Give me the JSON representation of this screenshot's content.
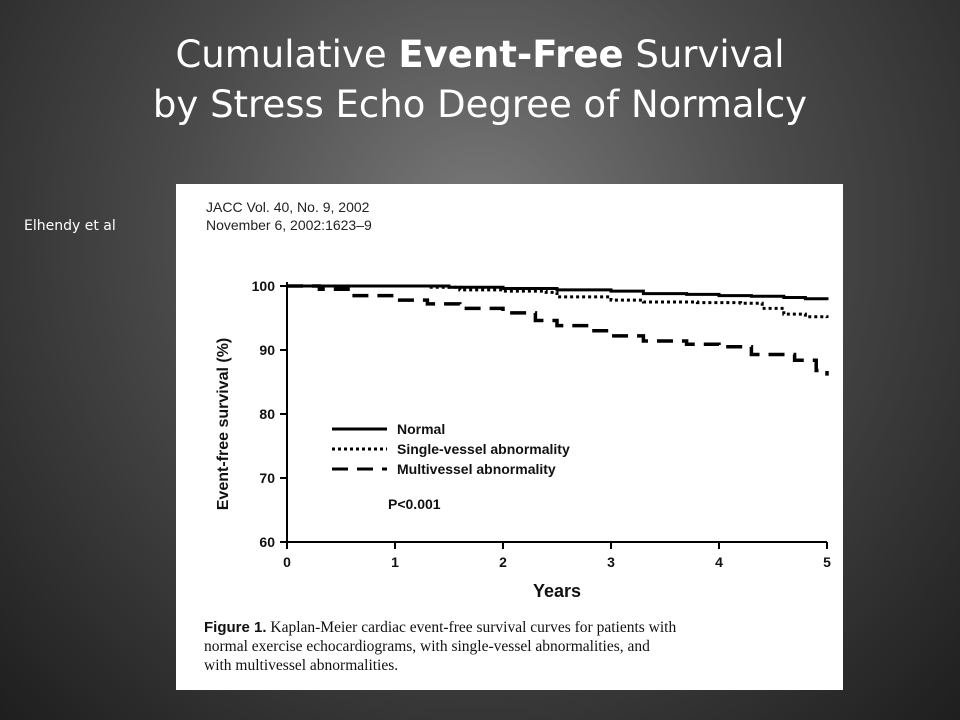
{
  "slide": {
    "title_line1_pre": "Cumulative ",
    "title_line1_bold": "Event-Free",
    "title_line1_post": " Survival",
    "title_line2": "by Stress Echo Degree of Normalcy",
    "author": "Elhendy et al"
  },
  "figure": {
    "citation_line1": "JACC Vol. 40, No. 9, 2002",
    "citation_line2": "November 6, 2002:1623–9",
    "caption_label": "Figure 1.",
    "caption_line1": "Kaplan-Meier cardiac event-free survival curves for patients with",
    "caption_line2": "normal exercise echocardiograms, with single-vessel abnormalities, and",
    "caption_line3": "with multivessel abnormalities."
  },
  "chart_data": {
    "type": "line",
    "xlabel": "Years",
    "ylabel": "Event-free survival (%)",
    "xlim": [
      0,
      5
    ],
    "ylim": [
      60,
      100
    ],
    "xticks": [
      0,
      1,
      2,
      3,
      4,
      5
    ],
    "yticks": [
      60,
      70,
      80,
      90,
      100
    ],
    "annotation": "P<0.001",
    "legend_placement": "center-left",
    "series": [
      {
        "name": "Normal",
        "style": "solid",
        "x": [
          0,
          0.5,
          1.0,
          1.5,
          2.0,
          2.5,
          3.0,
          3.3,
          3.7,
          4.0,
          4.3,
          4.6,
          4.8,
          5.0
        ],
        "y": [
          100,
          100,
          100,
          99.8,
          99.6,
          99.4,
          99.2,
          98.8,
          98.7,
          98.5,
          98.4,
          98.2,
          98.0,
          97.8
        ]
      },
      {
        "name": "Single-vessel abnormality",
        "style": "dotted",
        "x": [
          0,
          0.5,
          1.0,
          1.3,
          1.6,
          2.0,
          2.4,
          2.5,
          3.0,
          3.3,
          3.8,
          4.2,
          4.4,
          4.6,
          4.8,
          5.0
        ],
        "y": [
          100,
          100,
          100,
          99.8,
          99.4,
          99.2,
          99.0,
          98.3,
          97.8,
          97.5,
          97.4,
          97.3,
          96.5,
          95.6,
          95.2,
          95.0
        ]
      },
      {
        "name": "Multivessel abnormality",
        "style": "dashed",
        "x": [
          0,
          0.3,
          0.6,
          1.0,
          1.3,
          1.6,
          2.0,
          2.3,
          2.5,
          2.8,
          3.0,
          3.3,
          3.7,
          4.0,
          4.3,
          4.7,
          4.9,
          5.0
        ],
        "y": [
          100,
          99.5,
          98.5,
          97.8,
          97.2,
          96.5,
          95.8,
          94.6,
          93.8,
          93.0,
          92.2,
          91.4,
          90.9,
          90.5,
          89.3,
          88.4,
          86.8,
          86.0
        ]
      }
    ]
  }
}
